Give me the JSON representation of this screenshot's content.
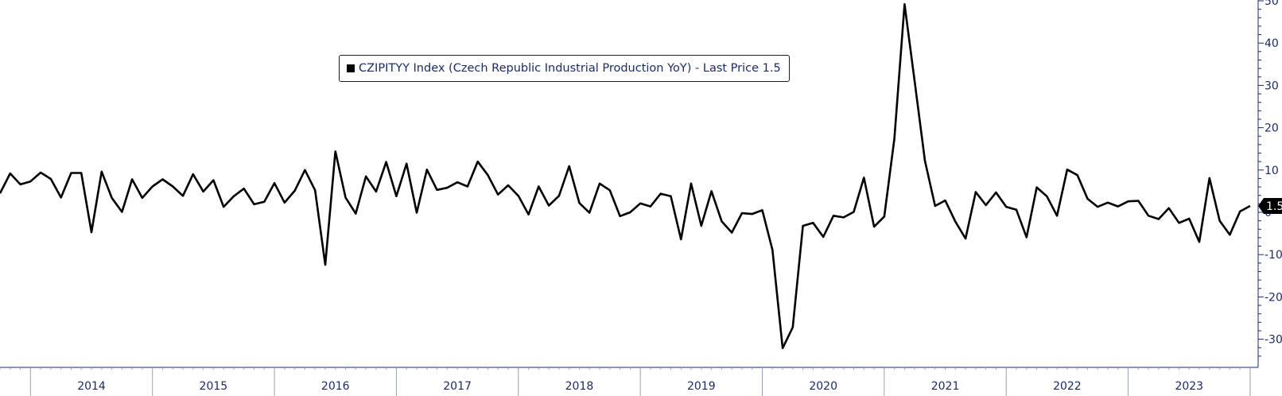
{
  "chart_data": {
    "type": "line",
    "legend": "CZIPITYY Index (Czech Republic Industrial Production YoY) - Last Price 1.5",
    "last_price_label": "1.5",
    "last_price": 1.5,
    "ylim": [
      -35,
      53
    ],
    "yticks": [
      50,
      40,
      30,
      20,
      10,
      0,
      -10,
      -20,
      -30
    ],
    "ytick_labels": [
      "50",
      "40",
      "30",
      "20",
      "10",
      "0",
      "-10",
      "-20",
      "-30"
    ],
    "x_years": [
      "2014",
      "2015",
      "2016",
      "2017",
      "2018",
      "2019",
      "2020",
      "2021",
      "2022",
      "2023"
    ],
    "grid": false,
    "legend_position": "top-center",
    "line_color": "#000000",
    "axis_text_color": "#1b2a6b",
    "series": [
      {
        "x_start": "2013-10",
        "values": [
          4.5,
          9.2,
          6.6,
          7.3,
          9.4,
          7.9,
          3.5,
          9.3,
          9.3,
          -4.7,
          9.6,
          3.4,
          0.1,
          7.8,
          3.4,
          6.1,
          7.8,
          6.1,
          3.9,
          9.0,
          4.9,
          7.6,
          1.3,
          3.8,
          5.6,
          1.9,
          2.5,
          6.9,
          2.3,
          5.1,
          10.0,
          5.2,
          -12.4,
          14.4,
          3.5,
          -0.3,
          8.5,
          4.9,
          11.9,
          3.8,
          11.5,
          -0.1,
          10.1,
          5.3,
          5.8,
          7.1,
          6.1,
          12.0,
          8.8,
          4.2,
          6.4,
          3.9,
          -0.5,
          6.1,
          1.6,
          3.9,
          10.9,
          2.2,
          -0.1,
          6.8,
          5.2,
          -0.9,
          0.0,
          2.1,
          1.4,
          4.4,
          3.8,
          -6.4,
          6.8,
          -3.2,
          5.0,
          -2.1,
          -4.8,
          -0.2,
          -0.4,
          0.5,
          -8.9,
          -32.1,
          -27.2,
          -3.2,
          -2.5,
          -5.8,
          -0.8,
          -1.2,
          0.1,
          8.2,
          -3.4,
          -1.0,
          17.4,
          49.2,
          30.8,
          12.2,
          1.5,
          2.8,
          -2.2,
          -6.2,
          4.8,
          1.7,
          4.7,
          1.3,
          0.6,
          -5.9,
          5.9,
          3.8,
          -0.8,
          10.1,
          8.8,
          3.2,
          1.3,
          2.3,
          1.4,
          2.6,
          2.7,
          -0.8,
          -1.6,
          1.0,
          -2.5,
          -1.5,
          -7.0,
          8.1,
          -2.0,
          -5.3,
          0.2,
          1.5
        ]
      }
    ]
  }
}
